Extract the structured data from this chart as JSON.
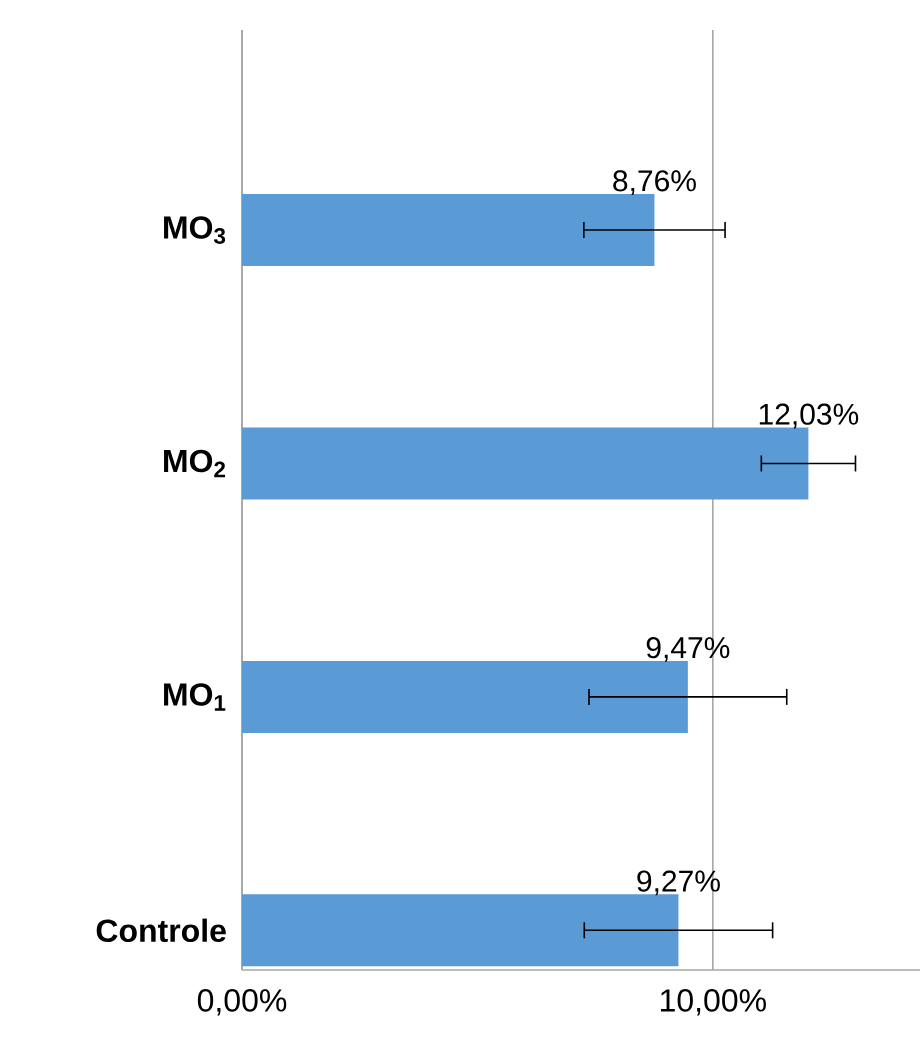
{
  "chart_data": {
    "type": "bar",
    "orientation": "horizontal",
    "categories": [
      "**MO$_{3}$**",
      "**MO$_{2}$**",
      "**MO$_{1}$**",
      "**Controle**"
    ],
    "values": [
      8.76,
      12.03,
      9.47,
      9.27
    ],
    "errors": [
      1.5,
      1.0,
      2.1,
      2.0
    ],
    "value_labels": [
      "8,76%",
      "12,03%",
      "9,47%",
      "9,27%"
    ],
    "color": "#5b9bd5",
    "xlim": [
      0,
      14.4
    ],
    "xticks": [
      {
        "value": 0,
        "label": "0,00%"
      },
      {
        "value": 10,
        "label": "10,00%"
      }
    ],
    "grid": "x"
  }
}
